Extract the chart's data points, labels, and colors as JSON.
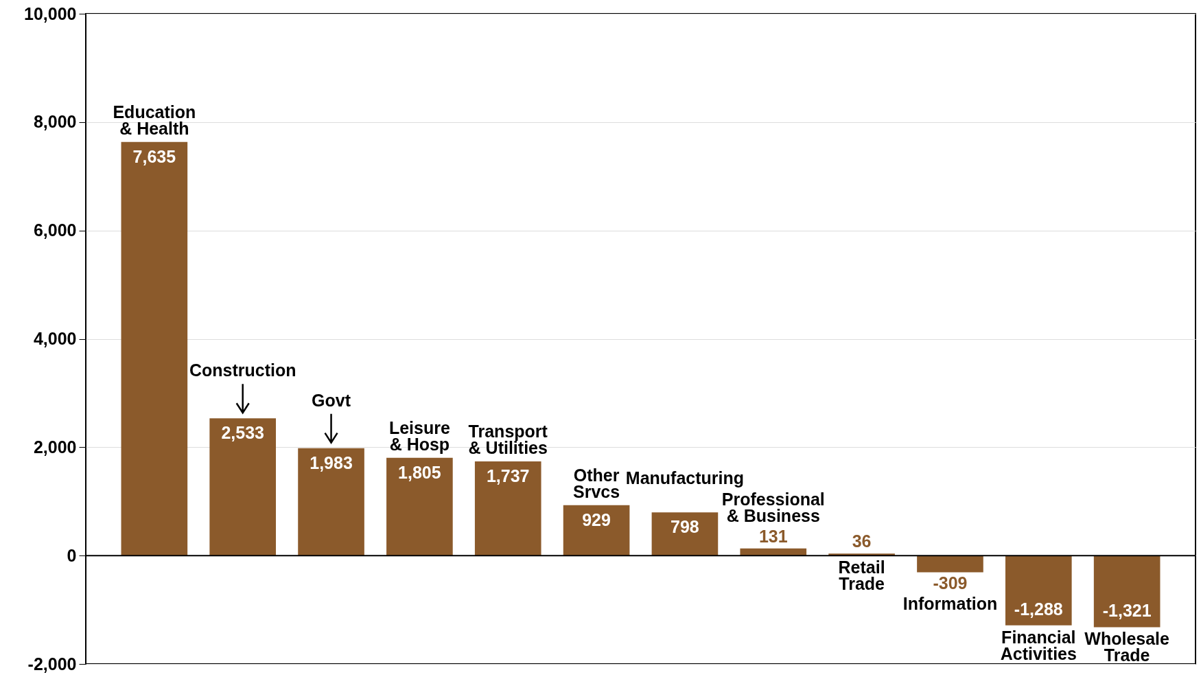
{
  "chart_data": {
    "type": "bar",
    "categories": [
      "Education & Health",
      "Construction",
      "Govt",
      "Leisure & Hosp",
      "Transport & Utilities",
      "Other Srvcs",
      "Manufacturing",
      "Professional & Business",
      "Retail Trade",
      "Information",
      "Financial Activities",
      "Wholesale Trade"
    ],
    "values": [
      7635,
      2533,
      1983,
      1805,
      1737,
      929,
      798,
      131,
      36,
      -309,
      -1288,
      -1321
    ],
    "color": "#8b5a2b",
    "ylim": [
      -2000,
      10000
    ],
    "yticks": [
      {
        "value": -2000,
        "label": "-2,000"
      },
      0,
      {
        "value": 2000,
        "label": "2,000"
      },
      {
        "value": 4000,
        "label": "4,000"
      },
      {
        "value": 6000,
        "label": "6,000"
      },
      {
        "value": 8000,
        "label": "8,000"
      },
      {
        "value": 10000,
        "label": "10,000"
      }
    ],
    "grid": "y",
    "value_labels": [
      "7,635",
      "2,533",
      "1,983",
      "1,805",
      "1,737",
      "929",
      "798",
      "131",
      "36",
      "-309",
      "-1,288",
      "-1,321"
    ],
    "ref_lines": [
      {
        "axis": "y",
        "value": 0,
        "color": "#000000"
      }
    ]
  }
}
